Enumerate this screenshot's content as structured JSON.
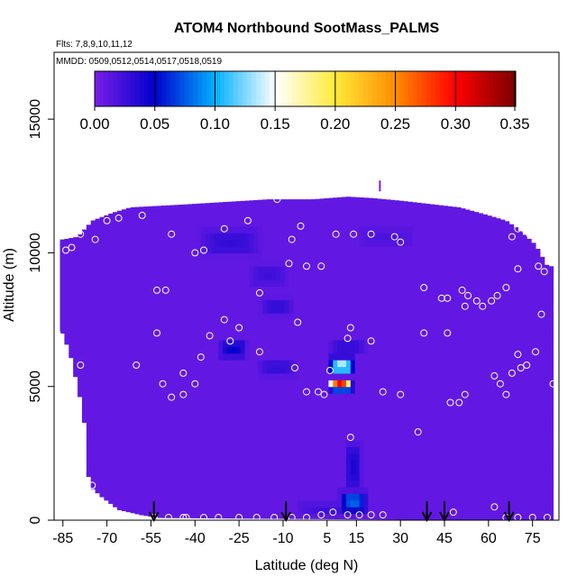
{
  "chart_data": {
    "type": "heatmap",
    "title": "ATOM4 Northbound SootMass_PALMS",
    "subtitle_flights": "Flts: 7,8,9,10,11,12",
    "subtitle_dates": "MMDD: 0509,0512,0514,0517,0518,0519",
    "xlabel": "Latitude (deg N)",
    "ylabel": "Altitude (m)",
    "xlim": [
      -88,
      84
    ],
    "ylim": [
      0,
      17500
    ],
    "x_ticks": [
      -85,
      -70,
      -55,
      -40,
      -25,
      -10,
      5,
      15,
      30,
      45,
      60,
      75
    ],
    "y_ticks": [
      0,
      5000,
      10000,
      15000
    ],
    "colorbar": {
      "range": [
        0,
        0.35
      ],
      "ticks": [
        "0.00",
        "0.05",
        "0.10",
        "0.15",
        "0.20",
        "0.25",
        "0.30",
        "0.35"
      ],
      "colors": [
        "#7a1ee8",
        "#0000cc",
        "#00b0ff",
        "#ffffff",
        "#ffeb3b",
        "#ff8c00",
        "#ff0000",
        "#7a0000"
      ]
    },
    "background_value": 0.01,
    "upper_profile": [
      [
        -85,
        10500
      ],
      [
        -80,
        10600
      ],
      [
        -75,
        11200
      ],
      [
        -68,
        11500
      ],
      [
        -62,
        11700
      ],
      [
        -45,
        11800
      ],
      [
        -30,
        11900
      ],
      [
        -15,
        12000
      ],
      [
        0,
        12000
      ],
      [
        12,
        12100
      ],
      [
        20,
        12050
      ],
      [
        30,
        11950
      ],
      [
        50,
        11700
      ],
      [
        60,
        11400
      ],
      [
        66,
        11200
      ],
      [
        70,
        10900
      ],
      [
        76,
        10300
      ],
      [
        80,
        9500
      ]
    ],
    "lower_profile": [
      [
        -85,
        7000
      ],
      [
        -82,
        6000
      ],
      [
        -78,
        4000
      ],
      [
        -76,
        1300
      ],
      [
        -72,
        900
      ],
      [
        -66,
        400
      ],
      [
        -58,
        200
      ],
      [
        -52,
        100
      ],
      [
        80,
        0
      ],
      [
        82,
        0
      ]
    ],
    "enhancements": [
      {
        "lat": -28,
        "alt": 10400,
        "w": 22,
        "h": 1100,
        "v": 0.03
      },
      {
        "lat": -15,
        "alt": 9200,
        "w": 14,
        "h": 900,
        "v": 0.025
      },
      {
        "lat": -12,
        "alt": 8000,
        "w": 12,
        "h": 800,
        "v": 0.03
      },
      {
        "lat": -27,
        "alt": 6400,
        "w": 10,
        "h": 700,
        "v": 0.05
      },
      {
        "lat": -12,
        "alt": 5700,
        "w": 14,
        "h": 700,
        "v": 0.03
      },
      {
        "lat": 10,
        "alt": 5800,
        "w": 9,
        "h": 700,
        "v": 0.14
      },
      {
        "lat": 10,
        "alt": 5000,
        "w": 9,
        "h": 500,
        "v": 0.09
      },
      {
        "lat": 12,
        "alt": 6500,
        "w": 14,
        "h": 700,
        "v": 0.03
      },
      {
        "lat": 14,
        "alt": 2000,
        "w": 6,
        "h": 2000,
        "v": 0.04
      },
      {
        "lat": 14,
        "alt": 700,
        "w": 10,
        "h": 900,
        "v": 0.08
      },
      {
        "lat": 5,
        "alt": 400,
        "w": 22,
        "h": 600,
        "v": 0.025
      },
      {
        "lat": 25,
        "alt": 10600,
        "w": 20,
        "h": 700,
        "v": 0.02
      }
    ],
    "hotspot": {
      "lat": 9.5,
      "alt": 5200,
      "w": 7,
      "h": 350,
      "v": 0.3
    },
    "points": [
      [
        -87,
        7000
      ],
      [
        -84,
        10100
      ],
      [
        -82,
        10200
      ],
      [
        -79,
        10700
      ],
      [
        -74,
        10500
      ],
      [
        -70,
        11200
      ],
      [
        -66,
        11300
      ],
      [
        -58,
        11400
      ],
      [
        -48,
        10700
      ],
      [
        -40,
        10000
      ],
      [
        -37,
        10100
      ],
      [
        -30,
        10900
      ],
      [
        -22,
        11200
      ],
      [
        -12,
        12000
      ],
      [
        -7,
        10500
      ],
      [
        -4,
        11000
      ],
      [
        -2,
        9500
      ],
      [
        3,
        9500
      ],
      [
        8,
        10700
      ],
      [
        14,
        10700
      ],
      [
        20,
        10700
      ],
      [
        28,
        10600
      ],
      [
        30,
        10400
      ],
      [
        38,
        8700
      ],
      [
        44,
        8300
      ],
      [
        46,
        8300
      ],
      [
        51,
        8600
      ],
      [
        52,
        8000
      ],
      [
        53,
        8400
      ],
      [
        56,
        8200
      ],
      [
        58,
        8000
      ],
      [
        61,
        8200
      ],
      [
        63,
        8400
      ],
      [
        66,
        8700
      ],
      [
        70,
        9400
      ],
      [
        77,
        9500
      ],
      [
        79,
        9300
      ],
      [
        68,
        10600
      ],
      [
        70,
        10900
      ],
      [
        72,
        10900
      ],
      [
        74,
        10700
      ],
      [
        -53,
        8600
      ],
      [
        -50,
        8600
      ],
      [
        -53,
        7000
      ],
      [
        -60,
        5800
      ],
      [
        -44,
        5500
      ],
      [
        -38,
        6100
      ],
      [
        -35,
        6900
      ],
      [
        -30,
        7500
      ],
      [
        -25,
        7200
      ],
      [
        -18,
        6300
      ],
      [
        -5,
        7400
      ],
      [
        -2,
        4800
      ],
      [
        2,
        4800
      ],
      [
        4,
        4700
      ],
      [
        6,
        5600
      ],
      [
        12,
        6800
      ],
      [
        13,
        7200
      ],
      [
        20,
        6700
      ],
      [
        24,
        4800
      ],
      [
        30,
        4700
      ],
      [
        38,
        7000
      ],
      [
        46,
        7000
      ],
      [
        47,
        4400
      ],
      [
        50,
        4400
      ],
      [
        52,
        4700
      ],
      [
        62,
        5400
      ],
      [
        64,
        5100
      ],
      [
        66,
        4700
      ],
      [
        68,
        5500
      ],
      [
        70,
        6200
      ],
      [
        71,
        5700
      ],
      [
        73,
        5800
      ],
      [
        76,
        6300
      ],
      [
        78,
        7700
      ],
      [
        82,
        5100
      ],
      [
        -85,
        5800
      ],
      [
        -79,
        5800
      ],
      [
        -75,
        1300
      ],
      [
        -51,
        5100
      ],
      [
        -48,
        4600
      ],
      [
        -44,
        4700
      ],
      [
        -40,
        5100
      ],
      [
        -6,
        5700
      ],
      [
        -28,
        6700
      ],
      [
        -18,
        8500
      ],
      [
        -8,
        9600
      ],
      [
        36,
        3300
      ],
      [
        13,
        3100
      ],
      [
        -49,
        100
      ],
      [
        -43,
        100
      ],
      [
        -37,
        100
      ],
      [
        -32,
        100
      ],
      [
        -25,
        100
      ],
      [
        -19,
        100
      ],
      [
        -13,
        100
      ],
      [
        -7,
        100
      ],
      [
        -2,
        100
      ],
      [
        3,
        200
      ],
      [
        7,
        300
      ],
      [
        12,
        200
      ],
      [
        16,
        200
      ],
      [
        20,
        200
      ],
      [
        24,
        200
      ],
      [
        48,
        300
      ],
      [
        62,
        500
      ],
      [
        66,
        100
      ],
      [
        70,
        100
      ],
      [
        75,
        100
      ],
      [
        80,
        100
      ],
      [
        -54,
        100
      ],
      [
        -44,
        100
      ]
    ],
    "arrows_lat": [
      -54,
      -9,
      39,
      45,
      67
    ],
    "marker_top": {
      "lat": 23,
      "alt": 12500
    }
  }
}
